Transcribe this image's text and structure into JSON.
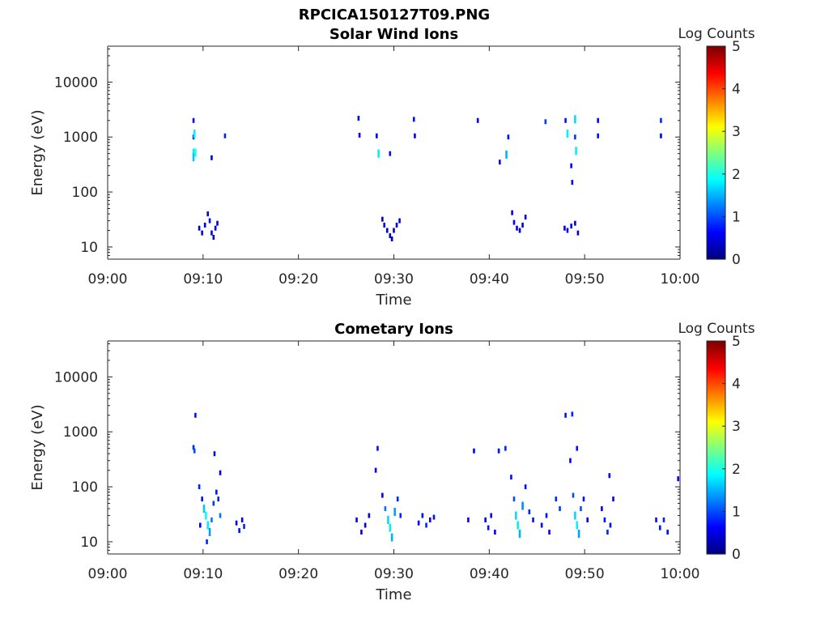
{
  "figure_title": "RPCICA150127T09.PNG",
  "colorbar": {
    "label": "Log Counts",
    "ticks": [
      "0",
      "1",
      "2",
      "3",
      "4",
      "5"
    ],
    "range": [
      0,
      5
    ],
    "colormap": "jet"
  },
  "colors": {
    "axis": "#262626",
    "background": "#ffffff"
  },
  "chart_data": [
    {
      "type": "heatmap",
      "title": "Solar Wind Ions",
      "xlabel": "Time",
      "ylabel": "Energy (eV)",
      "x_ticks": [
        "09:00",
        "09:10",
        "09:20",
        "09:30",
        "09:40",
        "09:50",
        "10:00"
      ],
      "y_ticks": [
        "10",
        "100",
        "1000",
        "10000"
      ],
      "x_range": [
        "09:00",
        "10:00"
      ],
      "y_range": [
        6,
        45000
      ],
      "y_scale": "log",
      "x_units": "minutes after 09:00",
      "cells": [
        [
          9.0,
          2000,
          0.6
        ],
        [
          9.0,
          1000,
          0.9
        ],
        [
          9.1,
          1150,
          1.8
        ],
        [
          9.0,
          520,
          1.8
        ],
        [
          9.0,
          430,
          1.6
        ],
        [
          9.2,
          520,
          2.0
        ],
        [
          10.9,
          420,
          0.5
        ],
        [
          12.3,
          1050,
          0.8
        ],
        [
          9.6,
          22,
          0.4
        ],
        [
          9.9,
          18,
          0.6
        ],
        [
          10.2,
          25,
          0.5
        ],
        [
          10.5,
          40,
          0.4
        ],
        [
          10.7,
          30,
          0.6
        ],
        [
          10.9,
          18,
          0.5
        ],
        [
          11.1,
          15,
          0.3
        ],
        [
          11.3,
          22,
          0.5
        ],
        [
          11.5,
          27,
          0.4
        ],
        [
          26.3,
          2200,
          0.6
        ],
        [
          26.4,
          1080,
          0.6
        ],
        [
          28.4,
          500,
          1.8
        ],
        [
          28.2,
          1050,
          0.5
        ],
        [
          29.6,
          500,
          0.7
        ],
        [
          32.1,
          2100,
          0.7
        ],
        [
          32.2,
          1050,
          0.6
        ],
        [
          28.8,
          32,
          0.4
        ],
        [
          29.0,
          25,
          0.5
        ],
        [
          29.3,
          20,
          0.3
        ],
        [
          29.6,
          16,
          0.4
        ],
        [
          29.8,
          14,
          0.2
        ],
        [
          30.0,
          20,
          0.4
        ],
        [
          30.3,
          25,
          0.5
        ],
        [
          30.6,
          30,
          0.4
        ],
        [
          38.8,
          2000,
          0.6
        ],
        [
          41.1,
          350,
          0.6
        ],
        [
          41.8,
          480,
          1.5
        ],
        [
          42.0,
          1000,
          0.7
        ],
        [
          42.4,
          42,
          0.5
        ],
        [
          42.6,
          28,
          0.6
        ],
        [
          42.9,
          22,
          0.5
        ],
        [
          43.2,
          20,
          0.4
        ],
        [
          43.5,
          25,
          0.5
        ],
        [
          43.8,
          35,
          0.4
        ],
        [
          45.9,
          1900,
          0.9
        ],
        [
          48.0,
          2000,
          0.7
        ],
        [
          48.2,
          1150,
          1.8
        ],
        [
          48.6,
          300,
          0.6
        ],
        [
          48.7,
          150,
          0.5
        ],
        [
          49.0,
          2100,
          1.7
        ],
        [
          49.0,
          1000,
          0.9
        ],
        [
          49.1,
          560,
          1.8
        ],
        [
          51.4,
          1050,
          0.7
        ],
        [
          51.4,
          2000,
          0.6
        ],
        [
          47.9,
          22,
          0.4
        ],
        [
          48.2,
          20,
          0.5
        ],
        [
          48.6,
          24,
          0.6
        ],
        [
          49.0,
          27,
          0.5
        ],
        [
          49.3,
          18,
          0.4
        ],
        [
          58.0,
          2000,
          0.8
        ],
        [
          58.0,
          1050,
          0.6
        ]
      ]
    },
    {
      "type": "heatmap",
      "title": "Cometary Ions",
      "xlabel": "Time",
      "ylabel": "Energy (eV)",
      "x_ticks": [
        "09:00",
        "09:10",
        "09:20",
        "09:30",
        "09:40",
        "09:50",
        "10:00"
      ],
      "y_ticks": [
        "10",
        "100",
        "1000",
        "10000"
      ],
      "x_range": [
        "09:00",
        "10:00"
      ],
      "y_range": [
        6,
        45000
      ],
      "y_scale": "log",
      "x_units": "minutes after 09:00",
      "cells": [
        [
          9.2,
          2000,
          0.7
        ],
        [
          9.0,
          520,
          0.8
        ],
        [
          9.1,
          450,
          1.0
        ],
        [
          11.2,
          400,
          0.5
        ],
        [
          11.8,
          180,
          0.6
        ],
        [
          9.6,
          100,
          0.8
        ],
        [
          9.9,
          60,
          0.7
        ],
        [
          10.1,
          40,
          1.6
        ],
        [
          10.3,
          30,
          1.9
        ],
        [
          10.5,
          20,
          1.8
        ],
        [
          10.7,
          15,
          1.4
        ],
        [
          10.9,
          25,
          1.2
        ],
        [
          11.1,
          50,
          0.9
        ],
        [
          11.4,
          80,
          0.7
        ],
        [
          11.6,
          60,
          0.8
        ],
        [
          11.8,
          30,
          1.2
        ],
        [
          9.7,
          20,
          0.6
        ],
        [
          10.4,
          10,
          0.8
        ],
        [
          13.5,
          22,
          0.6
        ],
        [
          13.8,
          16,
          0.7
        ],
        [
          14.1,
          25,
          0.6
        ],
        [
          14.3,
          19,
          0.8
        ],
        [
          26.1,
          25,
          0.6
        ],
        [
          26.6,
          15,
          0.5
        ],
        [
          27.0,
          20,
          0.4
        ],
        [
          27.4,
          30,
          0.6
        ],
        [
          28.1,
          200,
          0.6
        ],
        [
          28.3,
          500,
          0.7
        ],
        [
          28.8,
          70,
          0.5
        ],
        [
          29.1,
          40,
          1.2
        ],
        [
          29.4,
          25,
          1.7
        ],
        [
          29.6,
          18,
          1.8
        ],
        [
          29.8,
          12,
          1.5
        ],
        [
          30.1,
          35,
          1.4
        ],
        [
          30.4,
          60,
          0.8
        ],
        [
          30.7,
          30,
          0.8
        ],
        [
          32.6,
          22,
          0.6
        ],
        [
          33.0,
          30,
          0.7
        ],
        [
          33.4,
          20,
          0.8
        ],
        [
          33.8,
          25,
          0.6
        ],
        [
          34.2,
          28,
          0.7
        ],
        [
          38.4,
          450,
          0.6
        ],
        [
          37.8,
          25,
          0.6
        ],
        [
          39.6,
          25,
          0.6
        ],
        [
          39.9,
          18,
          0.7
        ],
        [
          40.2,
          30,
          0.6
        ],
        [
          40.6,
          15,
          0.6
        ],
        [
          41.0,
          450,
          0.7
        ],
        [
          41.7,
          500,
          0.8
        ],
        [
          42.3,
          150,
          0.7
        ],
        [
          42.6,
          60,
          1.0
        ],
        [
          42.8,
          30,
          1.7
        ],
        [
          43.0,
          20,
          1.8
        ],
        [
          43.2,
          14,
          1.5
        ],
        [
          43.5,
          45,
          1.3
        ],
        [
          43.8,
          100,
          0.7
        ],
        [
          44.2,
          35,
          0.8
        ],
        [
          44.6,
          25,
          0.7
        ],
        [
          45.5,
          20,
          0.6
        ],
        [
          46.0,
          30,
          0.7
        ],
        [
          46.3,
          15,
          0.6
        ],
        [
          47.0,
          60,
          0.8
        ],
        [
          47.4,
          40,
          0.9
        ],
        [
          48.0,
          2000,
          0.7
        ],
        [
          48.5,
          300,
          0.6
        ],
        [
          48.7,
          2100,
          0.8
        ],
        [
          48.8,
          70,
          1.0
        ],
        [
          49.0,
          30,
          1.7
        ],
        [
          49.2,
          20,
          1.8
        ],
        [
          49.4,
          14,
          1.4
        ],
        [
          49.6,
          40,
          1.0
        ],
        [
          49.9,
          60,
          0.7
        ],
        [
          50.3,
          25,
          0.6
        ],
        [
          49.2,
          500,
          0.7
        ],
        [
          51.8,
          40,
          0.6
        ],
        [
          52.1,
          25,
          0.7
        ],
        [
          52.4,
          15,
          0.8
        ],
        [
          52.7,
          20,
          0.7
        ],
        [
          53.0,
          60,
          0.5
        ],
        [
          52.6,
          160,
          0.6
        ],
        [
          57.5,
          25,
          0.7
        ],
        [
          57.9,
          18,
          0.7
        ],
        [
          58.3,
          25,
          0.8
        ],
        [
          58.7,
          15,
          0.7
        ],
        [
          59.8,
          140,
          0.6
        ]
      ]
    }
  ]
}
